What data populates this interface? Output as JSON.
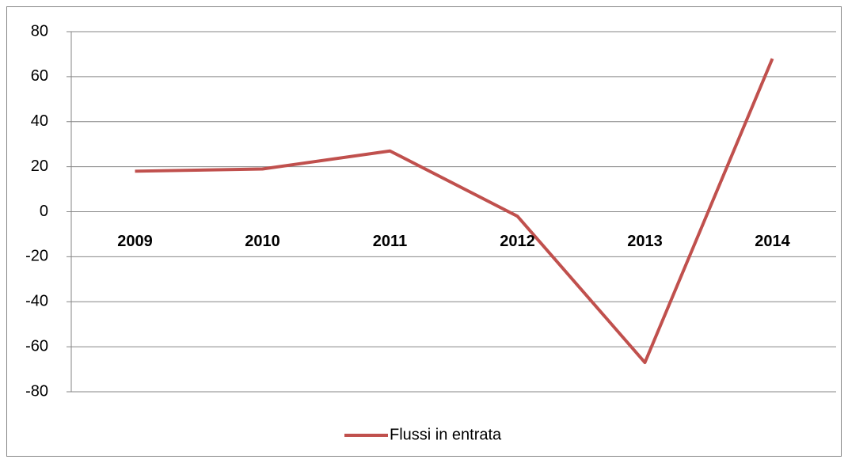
{
  "chart_data": {
    "type": "line",
    "categories": [
      "2009",
      "2010",
      "2011",
      "2012",
      "2013",
      "2014"
    ],
    "series": [
      {
        "name": "Flussi in entrata",
        "color": "#c0504d",
        "values": [
          18,
          19,
          27,
          -2,
          -67,
          68
        ]
      }
    ],
    "ylim": [
      -80,
      80
    ],
    "yticks": [
      -80,
      -60,
      -40,
      -20,
      0,
      20,
      40,
      60,
      80
    ],
    "grid": true,
    "legend": "bottom"
  }
}
